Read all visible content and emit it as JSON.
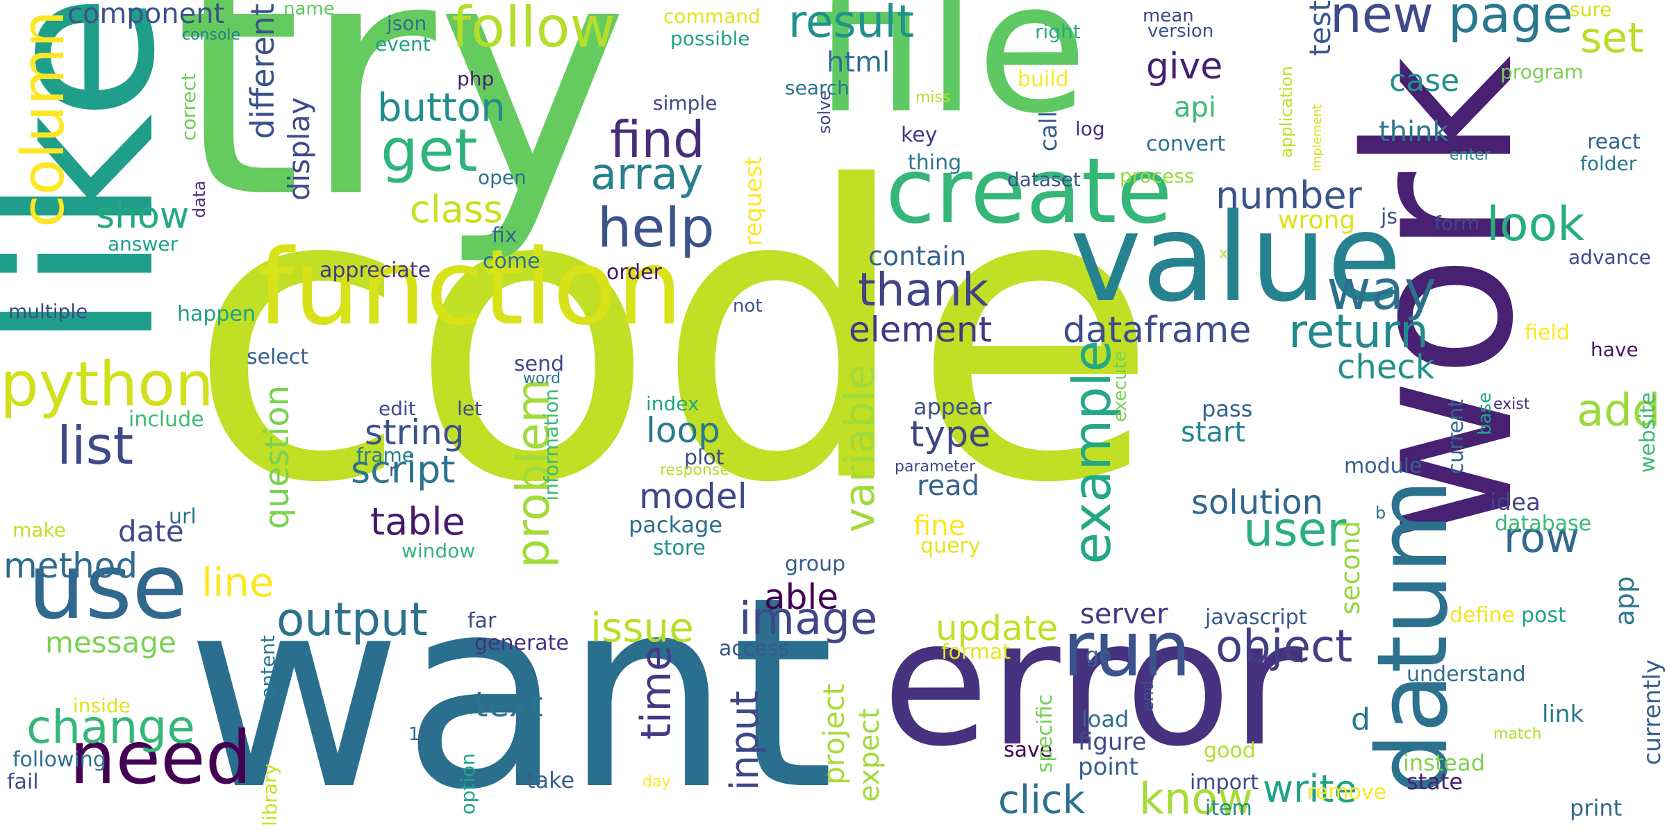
{
  "words": [
    {
      "text": "code",
      "color": "#c0df25"
    },
    {
      "text": "try",
      "color": "#65cb5e"
    },
    {
      "text": "want",
      "color": "#2a6f8e"
    },
    {
      "text": "like",
      "color": "#1f9e89"
    },
    {
      "text": "work",
      "color": "#482173"
    },
    {
      "text": "file",
      "color": "#5ec962"
    },
    {
      "text": "error",
      "color": "#46327e"
    },
    {
      "text": "value",
      "color": "#26828e"
    },
    {
      "text": "function",
      "color": "#d8e219"
    },
    {
      "text": "create",
      "color": "#35b779"
    },
    {
      "text": "datum",
      "color": "#2c728e"
    },
    {
      "text": "use",
      "color": "#31688e"
    },
    {
      "text": "need",
      "color": "#440154"
    },
    {
      "text": "run",
      "color": "#3b528b"
    },
    {
      "text": "column",
      "color": "#fde725"
    },
    {
      "text": "python",
      "color": "#d0e11c"
    },
    {
      "text": "example",
      "color": "#22a884"
    },
    {
      "text": "follow",
      "color": "#b5de2b"
    },
    {
      "text": "result",
      "color": "#21918c"
    },
    {
      "text": "new",
      "color": "#3e4a89"
    },
    {
      "text": "page",
      "color": "#2a788e"
    },
    {
      "text": "get",
      "color": "#2fb47c"
    },
    {
      "text": "help",
      "color": "#3b528b"
    },
    {
      "text": "find",
      "color": "#472d7b"
    },
    {
      "text": "array",
      "color": "#277f8e"
    },
    {
      "text": "way",
      "color": "#2d708e"
    },
    {
      "text": "look",
      "color": "#27ad81"
    },
    {
      "text": "return",
      "color": "#23898e"
    },
    {
      "text": "thank",
      "color": "#414487"
    },
    {
      "text": "list",
      "color": "#3e4989"
    },
    {
      "text": "change",
      "color": "#35b779"
    },
    {
      "text": "output",
      "color": "#2c728e"
    },
    {
      "text": "image",
      "color": "#404688"
    },
    {
      "text": "object",
      "color": "#433e85"
    },
    {
      "text": "know",
      "color": "#a5db36"
    },
    {
      "text": "problem",
      "color": "#a2da37"
    },
    {
      "text": "time",
      "color": "#443983"
    },
    {
      "text": "row",
      "color": "#31688e"
    },
    {
      "text": "add",
      "color": "#9bd93c"
    },
    {
      "text": "user",
      "color": "#2ab07f"
    },
    {
      "text": "number",
      "color": "#3b528b"
    },
    {
      "text": "button",
      "color": "#228d8d"
    },
    {
      "text": "set",
      "color": "#b8de29"
    },
    {
      "text": "dataframe",
      "color": "#3e4c8a"
    },
    {
      "text": "table",
      "color": "#481a6c"
    },
    {
      "text": "variable",
      "color": "#a2da37"
    },
    {
      "text": "input",
      "color": "#3f4788"
    },
    {
      "text": "write",
      "color": "#1fa287"
    },
    {
      "text": "click",
      "color": "#2d708e"
    },
    {
      "text": "text",
      "color": "#2b748e"
    },
    {
      "text": "script",
      "color": "#2c738e"
    },
    {
      "text": "string",
      "color": "#3b528b"
    },
    {
      "text": "model",
      "color": "#3f4889"
    },
    {
      "text": "solution",
      "color": "#31688e"
    },
    {
      "text": "element",
      "color": "#453781"
    },
    {
      "text": "issue",
      "color": "#b8de29"
    },
    {
      "text": "update",
      "color": "#c2df23"
    },
    {
      "text": "line",
      "color": "#fde725"
    },
    {
      "text": "method",
      "color": "#2f6c8e"
    },
    {
      "text": "show",
      "color": "#23a983"
    },
    {
      "text": "class",
      "color": "#c8e020"
    },
    {
      "text": "check",
      "color": "#21918c"
    },
    {
      "text": "different",
      "color": "#3b518b"
    },
    {
      "text": "type",
      "color": "#3f4788"
    },
    {
      "text": "loop",
      "color": "#2a788e"
    },
    {
      "text": "message",
      "color": "#7ad151"
    },
    {
      "text": "give",
      "color": "#481f70"
    },
    {
      "text": "component",
      "color": "#3b528b"
    },
    {
      "text": "server",
      "color": "#443a83"
    },
    {
      "text": "date",
      "color": "#3e4a89"
    },
    {
      "text": "question",
      "color": "#7ad151"
    },
    {
      "text": "test",
      "color": "#38598c"
    },
    {
      "text": "case",
      "color": "#21908d"
    },
    {
      "text": "think",
      "color": "#2a788e"
    },
    {
      "text": "api",
      "color": "#3bbb75"
    },
    {
      "text": "html",
      "color": "#2e6e8e"
    },
    {
      "text": "display",
      "color": "#3e4a89"
    },
    {
      "text": "contain",
      "color": "#33638d"
    },
    {
      "text": "able",
      "color": "#440154"
    },
    {
      "text": "project",
      "color": "#a8db34"
    },
    {
      "text": "expect",
      "color": "#a0da39"
    },
    {
      "text": "second",
      "color": "#95d840"
    },
    {
      "text": "start",
      "color": "#25848e"
    },
    {
      "text": "read",
      "color": "#33638d"
    },
    {
      "text": "package",
      "color": "#2e6f8e"
    },
    {
      "text": "fine",
      "color": "#fde725"
    },
    {
      "text": "wrong",
      "color": "#dde318"
    },
    {
      "text": "request",
      "color": "#fde725"
    },
    {
      "text": "javascript",
      "color": "#38598c"
    },
    {
      "text": "understand",
      "color": "#2f6c8e"
    },
    {
      "text": "app",
      "color": "#2a788e"
    },
    {
      "text": "instead",
      "color": "#7fd34e"
    },
    {
      "text": "state",
      "color": "#481f70"
    },
    {
      "text": "print",
      "color": "#31688e"
    },
    {
      "text": "link",
      "color": "#2a788e"
    },
    {
      "text": "currently",
      "color": "#355e8d"
    },
    {
      "text": "point",
      "color": "#355f8d"
    },
    {
      "text": "figure",
      "color": "#3e4c8a"
    },
    {
      "text": "load",
      "color": "#2e6e8e"
    },
    {
      "text": "save",
      "color": "#440154"
    },
    {
      "text": "good",
      "color": "#b0dd2f"
    },
    {
      "text": "import",
      "color": "#3e4989"
    },
    {
      "text": "remove",
      "color": "#fde725"
    },
    {
      "text": "item",
      "color": "#238a8d"
    },
    {
      "text": "go",
      "color": "#33638d"
    },
    {
      "text": "post",
      "color": "#1fa088"
    },
    {
      "text": "define",
      "color": "#f1e51d"
    },
    {
      "text": "access",
      "color": "#38588c"
    },
    {
      "text": "generate",
      "color": "#46307e"
    },
    {
      "text": "far",
      "color": "#3e4a89"
    },
    {
      "text": "format",
      "color": "#e7e419"
    },
    {
      "text": "take",
      "color": "#355f8d"
    },
    {
      "text": "day",
      "color": "#fde725"
    },
    {
      "text": "option",
      "color": "#20a386"
    },
    {
      "text": "specific",
      "color": "#73d056"
    },
    {
      "text": "end",
      "color": "#3d4e8a"
    },
    {
      "text": "library",
      "color": "#cae11f"
    },
    {
      "text": "content",
      "color": "#2a768e"
    },
    {
      "text": "inside",
      "color": "#e2e418"
    },
    {
      "text": "following",
      "color": "#2d718e"
    },
    {
      "text": "fail",
      "color": "#3c4f8a"
    },
    {
      "text": "10",
      "color": "#31688e"
    },
    {
      "text": "include",
      "color": "#3dbc74"
    },
    {
      "text": "make",
      "color": "#c2df23"
    },
    {
      "text": "url",
      "color": "#2d708e"
    },
    {
      "text": "window",
      "color": "#32b67a"
    },
    {
      "text": "group",
      "color": "#355e8d"
    },
    {
      "text": "store",
      "color": "#21918c"
    },
    {
      "text": "query",
      "color": "#e5e419"
    },
    {
      "text": "idea",
      "color": "#414487"
    },
    {
      "text": "database",
      "color": "#3aba76"
    },
    {
      "text": "b",
      "color": "#2c728e"
    },
    {
      "text": "module",
      "color": "#355e8d"
    },
    {
      "text": "d",
      "color": "#2a788e"
    },
    {
      "text": "match",
      "color": "#b2dd2d"
    },
    {
      "text": "pass",
      "color": "#33638d"
    },
    {
      "text": "appear",
      "color": "#3b528b"
    },
    {
      "text": "parameter",
      "color": "#3f4889"
    },
    {
      "text": "execute",
      "color": "#7ad151"
    },
    {
      "text": "index",
      "color": "#21a685"
    },
    {
      "text": "plot",
      "color": "#3e4a89"
    },
    {
      "text": "response",
      "color": "#b5de2b"
    },
    {
      "text": "frame",
      "color": "#287c8e"
    },
    {
      "text": "edit",
      "color": "#3e4a89"
    },
    {
      "text": "let",
      "color": "#3d4e8a"
    },
    {
      "text": "r",
      "color": "#3b528b"
    },
    {
      "text": "information",
      "color": "#3bbb75"
    },
    {
      "text": "word",
      "color": "#2a788e"
    },
    {
      "text": "send",
      "color": "#3e4989"
    },
    {
      "text": "select",
      "color": "#33638d"
    },
    {
      "text": "multiple",
      "color": "#3e4a89"
    },
    {
      "text": "happen",
      "color": "#1fa088"
    },
    {
      "text": "appreciate",
      "color": "#443983"
    },
    {
      "text": "answer",
      "color": "#20a386"
    },
    {
      "text": "data",
      "color": "#472d7b"
    },
    {
      "text": "come",
      "color": "#2d708e"
    },
    {
      "text": "fix",
      "color": "#306a8e"
    },
    {
      "text": "order",
      "color": "#481467"
    },
    {
      "text": "not",
      "color": "#3b528b"
    },
    {
      "text": "x",
      "color": "#a8db34"
    },
    {
      "text": "form",
      "color": "#3e4a89"
    },
    {
      "text": "js",
      "color": "#3b528b"
    },
    {
      "text": "advance",
      "color": "#3e4989"
    },
    {
      "text": "field",
      "color": "#fde725"
    },
    {
      "text": "have",
      "color": "#481467"
    },
    {
      "text": "exist",
      "color": "#46327e"
    },
    {
      "text": "base",
      "color": "#20a486"
    },
    {
      "text": "current",
      "color": "#31688e"
    },
    {
      "text": "website",
      "color": "#3bbb75"
    },
    {
      "text": "react",
      "color": "#33638d"
    },
    {
      "text": "folder",
      "color": "#2a788e"
    },
    {
      "text": "enter",
      "color": "#25838e"
    },
    {
      "text": "program",
      "color": "#7ad151"
    },
    {
      "text": "sure",
      "color": "#d5e21a"
    },
    {
      "text": "application",
      "color": "#c2df23"
    },
    {
      "text": "implement",
      "color": "#d8e219"
    },
    {
      "text": "mean",
      "color": "#3f4889"
    },
    {
      "text": "version",
      "color": "#3b528b"
    },
    {
      "text": "right",
      "color": "#25ab82"
    },
    {
      "text": "log",
      "color": "#472d7b"
    },
    {
      "text": "convert",
      "color": "#2d708e"
    },
    {
      "text": "thing",
      "color": "#2a788e"
    },
    {
      "text": "key",
      "color": "#443a83"
    },
    {
      "text": "dataset",
      "color": "#3b528b"
    },
    {
      "text": "process",
      "color": "#9bd93c"
    },
    {
      "text": "build",
      "color": "#fde725"
    },
    {
      "text": "call",
      "color": "#355f8d"
    },
    {
      "text": "command",
      "color": "#e2e418"
    },
    {
      "text": "possible",
      "color": "#20a386"
    },
    {
      "text": "json",
      "color": "#2d708e"
    },
    {
      "text": "event",
      "color": "#1fa088"
    },
    {
      "text": "name",
      "color": "#5ec962"
    },
    {
      "text": "console",
      "color": "#277f8e"
    },
    {
      "text": "php",
      "color": "#482173"
    },
    {
      "text": "simple",
      "color": "#3f4788"
    },
    {
      "text": "search",
      "color": "#2c728e"
    },
    {
      "text": "miss",
      "color": "#b5de2b"
    },
    {
      "text": "solve",
      "color": "#414487"
    },
    {
      "text": "correct",
      "color": "#6ece58"
    },
    {
      "text": "open",
      "color": "#2c738e"
    }
  ]
}
